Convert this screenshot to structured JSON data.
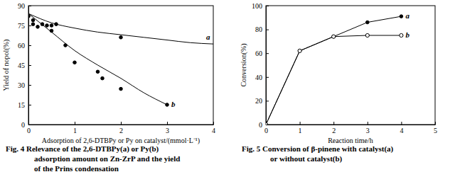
{
  "chart_data": [
    {
      "type": "scatter",
      "y_label": "Yield of nopol(%)",
      "x_label": "Adsorption of 2,6-DTBPy or Py on catalyst/(mmol·L⁻¹)",
      "caption": [
        "Fig. 4  Relevance of the 2,6-DTBPy(a) or Py(b)",
        "adsorption amount on Zn-ZrP and the yield",
        "of the Prins condensation"
      ],
      "xlim": [
        0,
        4
      ],
      "xticks": [
        0,
        1,
        2,
        3,
        4
      ],
      "ylim": [
        0,
        90
      ],
      "yticks": [
        0,
        15,
        30,
        45,
        60,
        75,
        90
      ],
      "series": [
        {
          "name": "a",
          "color": "#000000",
          "marker": "filled",
          "x": [
            0,
            0.1,
            0.3,
            0.5,
            0.6,
            2.0
          ],
          "values": [
            82,
            79,
            76,
            75,
            76,
            66
          ],
          "fit_x": [
            0,
            0.5,
            1,
            1.5,
            2,
            2.5,
            3,
            3.5,
            4
          ],
          "fit_values": [
            84,
            77,
            73,
            70,
            68,
            66,
            64,
            62,
            61
          ]
        },
        {
          "name": "b",
          "color": "#000000",
          "marker": "filled",
          "x": [
            0.1,
            0.2,
            0.4,
            0.5,
            0.8,
            1.0,
            1.5,
            1.6,
            2.0,
            3.0
          ],
          "values": [
            76,
            74,
            75,
            71,
            60,
            47,
            40,
            35,
            27,
            15
          ],
          "fit_x": [
            0,
            0.5,
            1,
            1.5,
            2,
            2.5,
            3
          ],
          "fit_values": [
            84,
            70,
            56,
            45,
            35,
            24,
            15
          ]
        }
      ]
    },
    {
      "type": "line",
      "y_label": "Conversion(%)",
      "x_label": "Reaction time/h",
      "caption": [
        "Fig. 5  Conversion of β-pinene with catalyst(a)",
        "or without catalyst(b)"
      ],
      "xlim": [
        0,
        5
      ],
      "xticks": [
        0,
        1,
        2,
        3,
        4,
        5
      ],
      "ylim": [
        0,
        100
      ],
      "yticks": [
        0,
        20,
        40,
        60,
        80,
        100
      ],
      "series": [
        {
          "name": "a",
          "color": "#000000",
          "marker": "filled",
          "x": [
            0,
            1,
            2,
            3,
            4
          ],
          "values": [
            0,
            62,
            74,
            86,
            91
          ]
        },
        {
          "name": "b",
          "color": "#000000",
          "marker": "open",
          "x": [
            0,
            1,
            2,
            3,
            4
          ],
          "values": [
            0,
            62,
            74,
            75,
            75
          ]
        }
      ]
    }
  ]
}
